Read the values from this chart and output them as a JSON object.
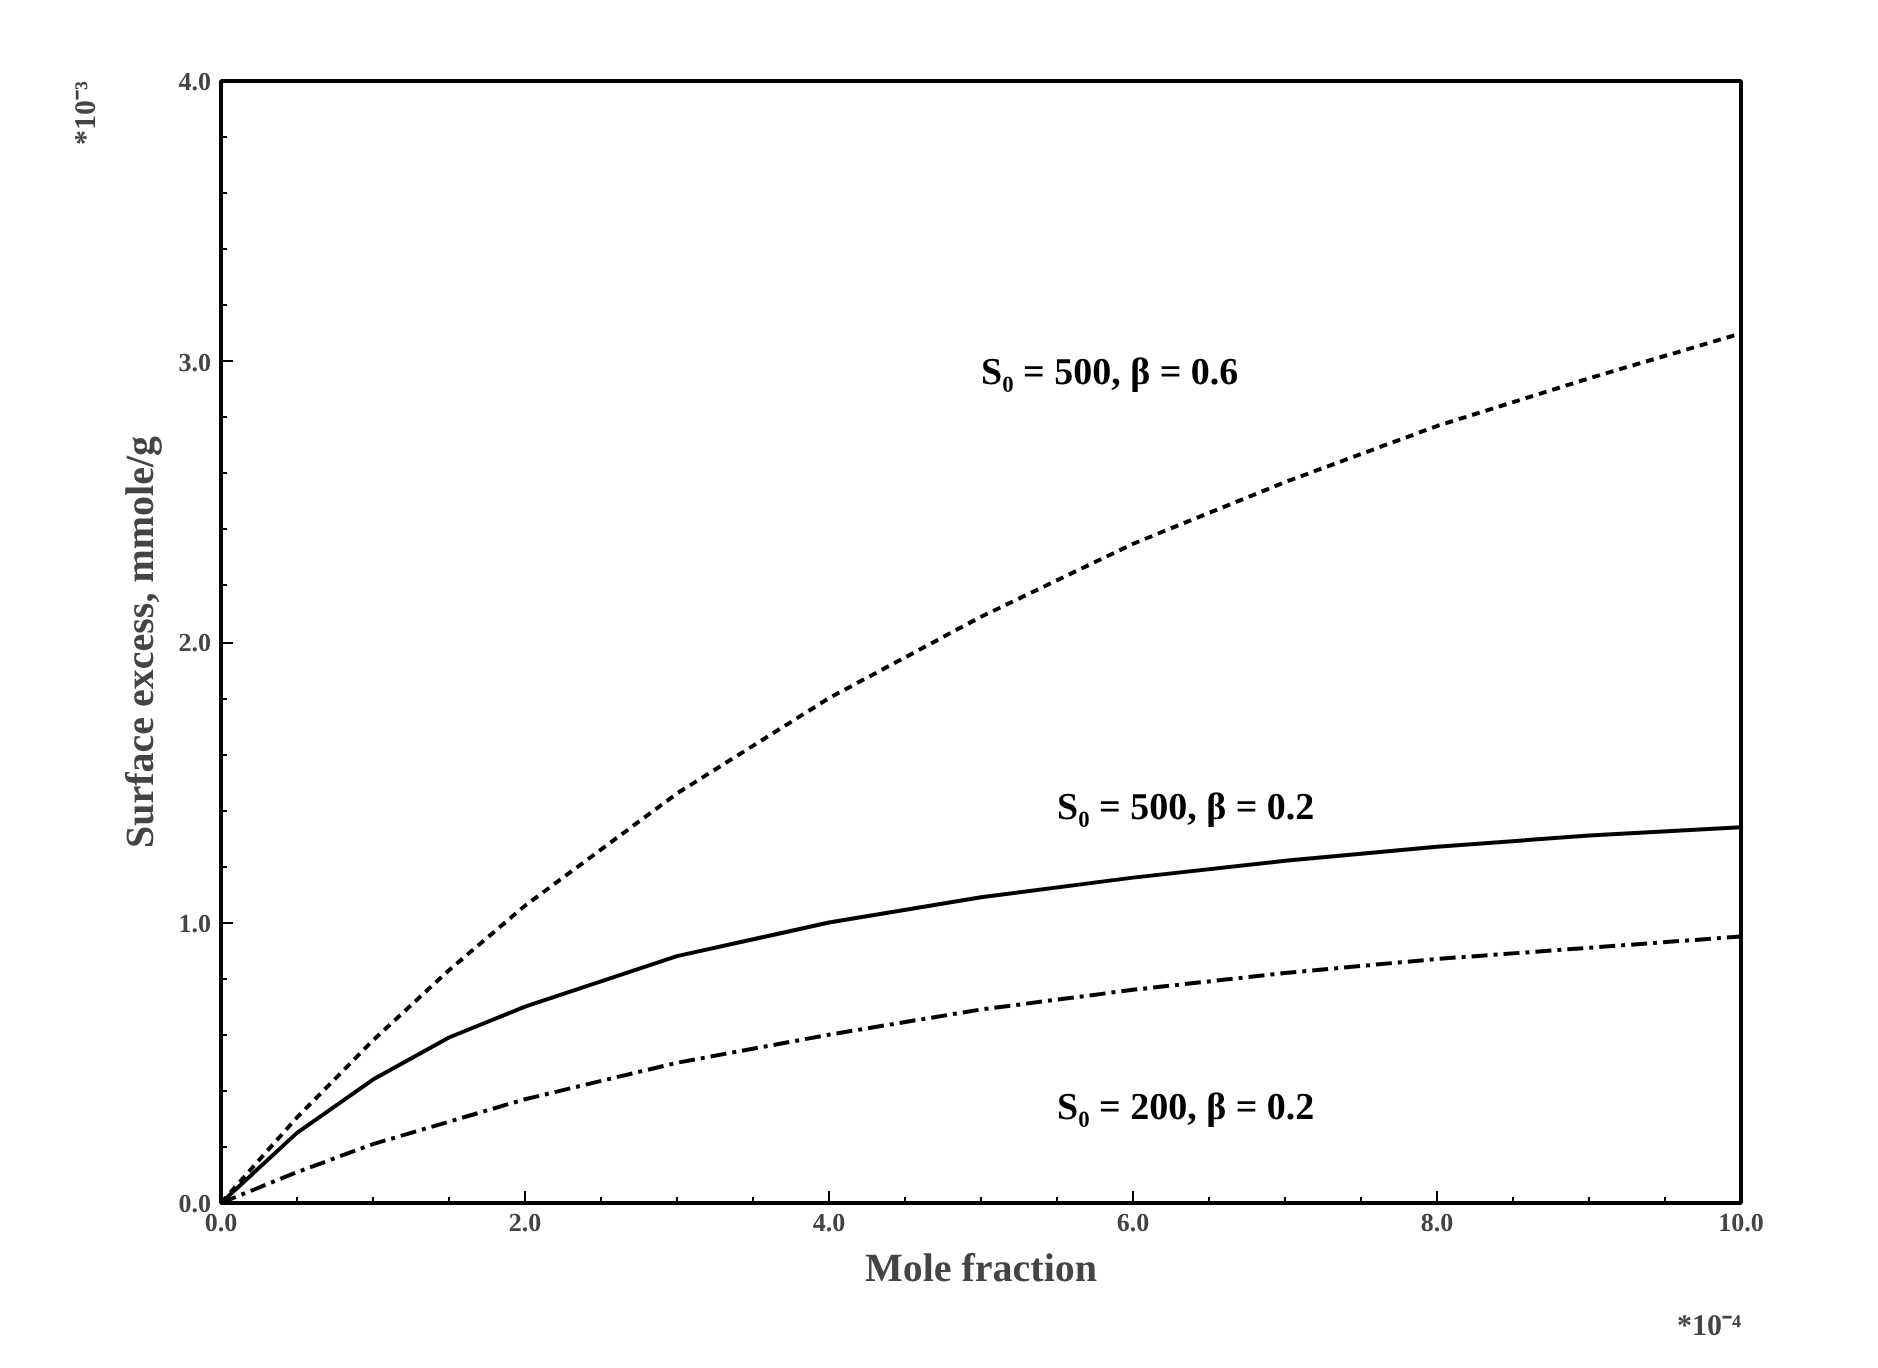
{
  "chart_data": {
    "type": "line",
    "xlabel": "Mole fraction",
    "ylabel": "Surface excess, mmole/g",
    "x": [
      0,
      0.5,
      1,
      1.5,
      2,
      3,
      4,
      5,
      6,
      7,
      8,
      9,
      10
    ],
    "series": [
      {
        "name": "S₀ = 500, β = 0.6",
        "color": "#000000",
        "line_style": "dashed",
        "values": [
          0,
          0.305,
          0.58,
          0.83,
          1.06,
          1.46,
          1.8,
          2.09,
          2.35,
          2.57,
          2.77,
          2.94,
          3.1
        ]
      },
      {
        "name": "S₀ = 500, β = 0.2",
        "color": "#000000",
        "line_style": "solid",
        "values": [
          0,
          0.25,
          0.44,
          0.59,
          0.7,
          0.88,
          1.0,
          1.09,
          1.16,
          1.22,
          1.27,
          1.31,
          1.34
        ]
      },
      {
        "name": "S₀ = 200, β = 0.2",
        "color": "#000000",
        "line_style": "dashdot",
        "values": [
          0,
          0.11,
          0.21,
          0.29,
          0.37,
          0.5,
          0.6,
          0.69,
          0.76,
          0.82,
          0.87,
          0.91,
          0.95
        ]
      }
    ],
    "xlim": [
      0,
      10
    ],
    "ylim": [
      0,
      4
    ],
    "xticks": [
      {
        "value": 0,
        "label": "0.0"
      },
      {
        "value": 2,
        "label": "2.0"
      },
      {
        "value": 4,
        "label": "4.0"
      },
      {
        "value": 6,
        "label": "6.0"
      },
      {
        "value": 8,
        "label": "8.0"
      },
      {
        "value": 10,
        "label": "10.0"
      }
    ],
    "yticks": [
      {
        "value": 0,
        "label": "0.0"
      },
      {
        "value": 1,
        "label": "1.0"
      },
      {
        "value": 2,
        "label": "2.0"
      },
      {
        "value": 3,
        "label": "3.0"
      },
      {
        "value": 4,
        "label": "4.0"
      }
    ],
    "grid": false,
    "legend": false,
    "marker": "none",
    "annotations": [
      "*10⁻³",
      "*10⁻⁴"
    ]
  }
}
